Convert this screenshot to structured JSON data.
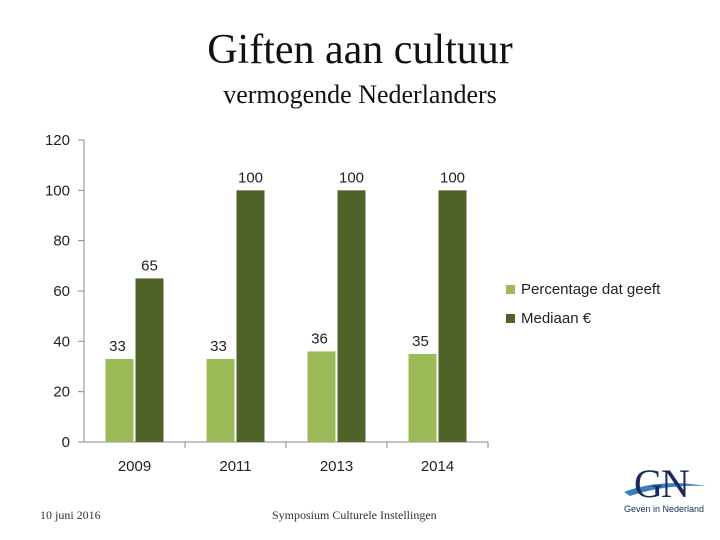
{
  "title": "Giften aan cultuur",
  "subtitle": "vermogende Nederlanders",
  "footer": {
    "date": "10 juni 2016",
    "event": "Symposium Culturele Instellingen"
  },
  "logo": {
    "letters": "GN",
    "tagline": "Geven in Nederland"
  },
  "colors": {
    "light_green": "#9bbb59",
    "dark_green": "#4f6228",
    "axis": "#888888"
  },
  "chart_data": {
    "type": "bar",
    "categories": [
      "2009",
      "2011",
      "2013",
      "2014"
    ],
    "series": [
      {
        "name": "Percentage dat geeft",
        "values": [
          33,
          33,
          36,
          35
        ],
        "color": "#9bbb59"
      },
      {
        "name": "Mediaan €",
        "values": [
          65,
          100,
          100,
          100
        ],
        "color": "#4f6228"
      }
    ],
    "yticks": [
      "0",
      "20",
      "40",
      "60",
      "80",
      "100",
      "120"
    ],
    "ylim": [
      0,
      120
    ],
    "grid": false,
    "legend": "right",
    "data_labels": true
  }
}
